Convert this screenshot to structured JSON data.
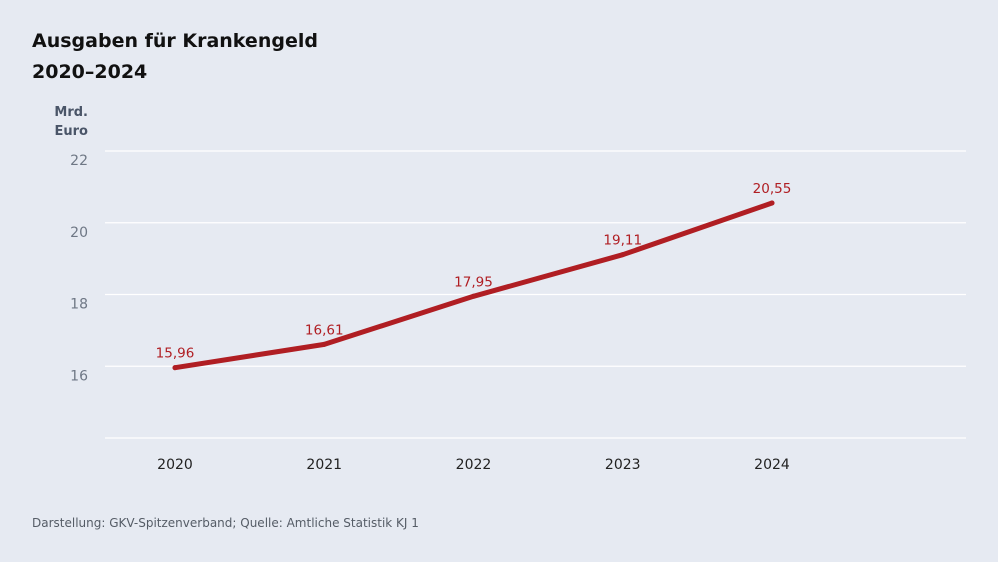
{
  "chart_data": {
    "type": "line",
    "title_line1": "Ausgaben für Krankengeld",
    "title_line2": "2020–2024",
    "ylabel_line1": "Mrd.",
    "ylabel_line2": "Euro",
    "x": [
      "2020",
      "2021",
      "2022",
      "2023",
      "2024"
    ],
    "series": [
      {
        "values": [
          15.96,
          16.61,
          17.95,
          19.11,
          20.55
        ],
        "labels": [
          "15,96",
          "16,61",
          "17,95",
          "19,11",
          "20,55"
        ]
      }
    ],
    "yticks": [
      16,
      18,
      20,
      22
    ],
    "ylim": [
      14,
      22
    ],
    "grid": true,
    "line_color": "#b01e23"
  },
  "footer": "Darstellung: GKV-Spitzenverband; Quelle: Amtliche Statistik KJ 1"
}
